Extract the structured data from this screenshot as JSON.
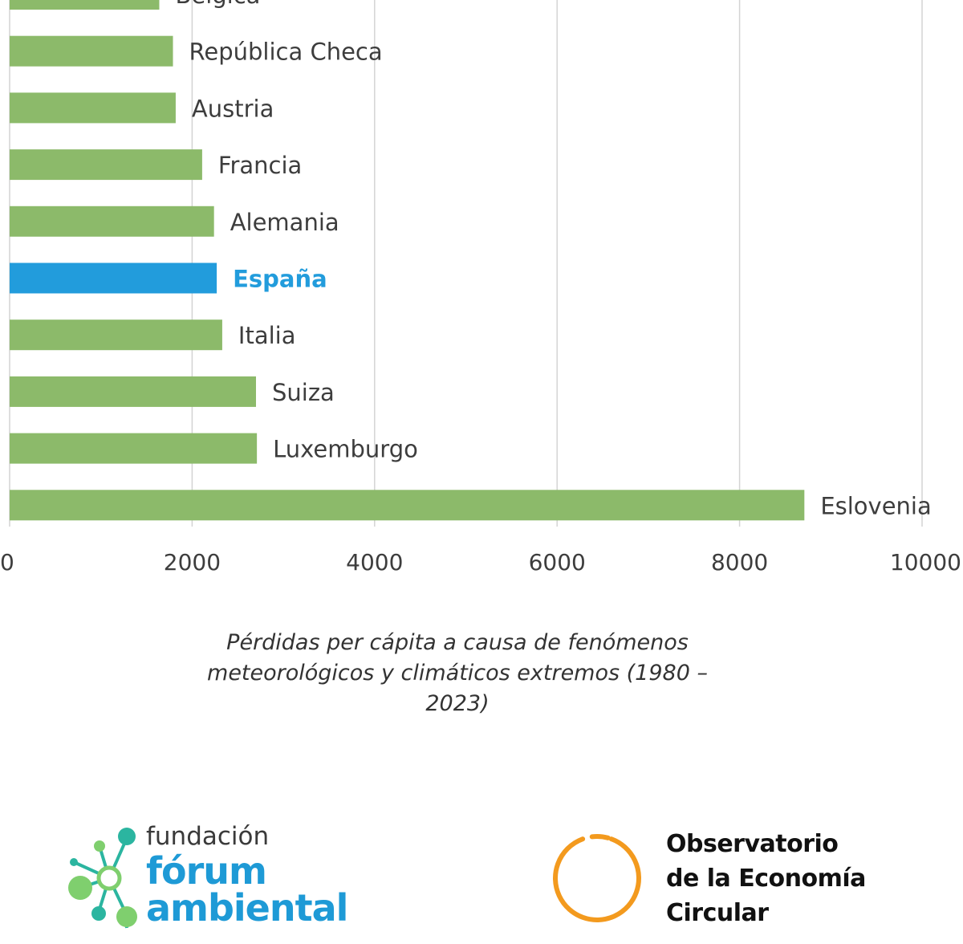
{
  "chart_data": {
    "type": "bar",
    "orientation": "horizontal",
    "categories": [
      "Bélgica",
      "República Checa",
      "Austria",
      "Francia",
      "Alemania",
      "España",
      "Italia",
      "Suiza",
      "Luxemburgo",
      "Eslovenia"
    ],
    "values": [
      1640,
      1790,
      1820,
      2110,
      2240,
      2270,
      2330,
      2700,
      2710,
      8710
    ],
    "highlight": "España",
    "xlim": [
      0,
      10000
    ],
    "xticks": [
      "0",
      "2000",
      "4000",
      "6000",
      "8000",
      "10000"
    ],
    "xlabel": "Pérdidas per cápita a causa de fenómenos\nmeteorológicos y climáticos extremos (1980 –\n2023)",
    "grid": true,
    "colors": {
      "bar": "#8cba6a",
      "highlight": "#229cdc",
      "label": "#3d3d3d",
      "grid": "#d4d4d4"
    }
  },
  "logos": {
    "forum": {
      "line1": "fundación",
      "line2": "fórum",
      "line3": "ambiental"
    },
    "observatorio": {
      "line1": "Observatorio",
      "line2": "de la Economía",
      "line3": "Circular"
    }
  }
}
